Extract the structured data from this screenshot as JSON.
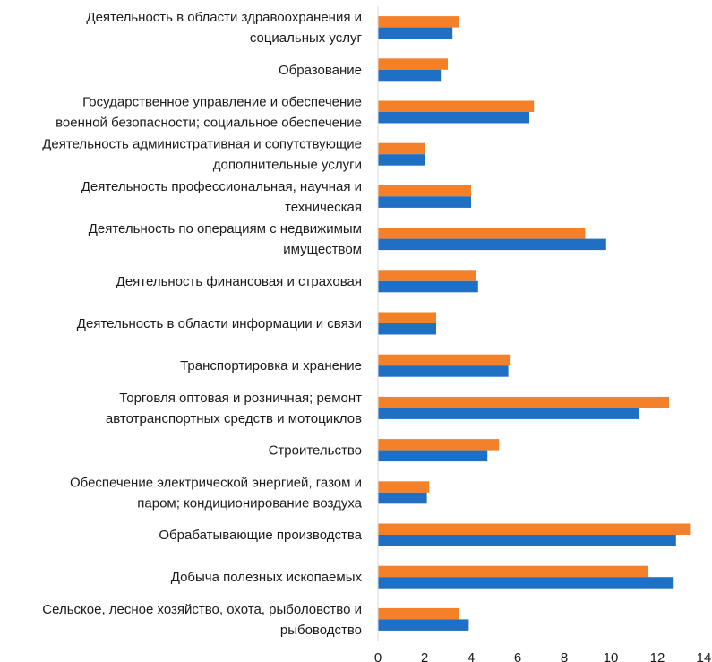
{
  "chart_data": {
    "type": "bar",
    "orientation": "horizontal",
    "title": "",
    "xlabel": "",
    "ylabel": "",
    "xlim": [
      0,
      14
    ],
    "xticks": [
      0,
      2,
      4,
      6,
      8,
      10,
      12,
      14
    ],
    "grid": false,
    "legend": "none",
    "categories": [
      [
        "Деятельность в области здравоохранения и",
        "социальных услуг"
      ],
      [
        "Образование"
      ],
      [
        "Государственное управление и обеспечение",
        "военной безопасности; социальное обеспечение"
      ],
      [
        "Деятельность административная и сопутствующие",
        "дополнительные услуги"
      ],
      [
        "Деятельность профессиональная, научная и",
        "техническая"
      ],
      [
        "Деятельность по операциям с недвижимым",
        "имуществом"
      ],
      [
        "Деятельность финансовая и страховая"
      ],
      [
        "Деятельность в области информации и связи"
      ],
      [
        "Транспортировка и хранение"
      ],
      [
        "Торговля оптовая и розничная; ремонт",
        "автотранспортных средств и мотоциклов"
      ],
      [
        "Строительство"
      ],
      [
        "Обеспечение электрической энергией, газом и",
        "паром; кондиционирование воздуха"
      ],
      [
        "Обрабатывающие производства"
      ],
      [
        "Добыча полезных ископаемых"
      ],
      [
        "Сельское, лесное хозяйство, охота, рыболовство и",
        "рыбоводство"
      ]
    ],
    "series": [
      {
        "name": "orange",
        "color": "#f4812a",
        "values": [
          3.5,
          3.0,
          6.7,
          2.0,
          4.0,
          8.9,
          4.2,
          2.5,
          5.7,
          12.5,
          5.2,
          2.2,
          13.4,
          11.6,
          3.5
        ]
      },
      {
        "name": "blue",
        "color": "#1f6fc5",
        "values": [
          3.2,
          2.7,
          6.5,
          2.0,
          4.0,
          9.8,
          4.3,
          2.5,
          5.6,
          11.2,
          4.7,
          2.1,
          12.8,
          12.7,
          3.9
        ]
      }
    ]
  }
}
